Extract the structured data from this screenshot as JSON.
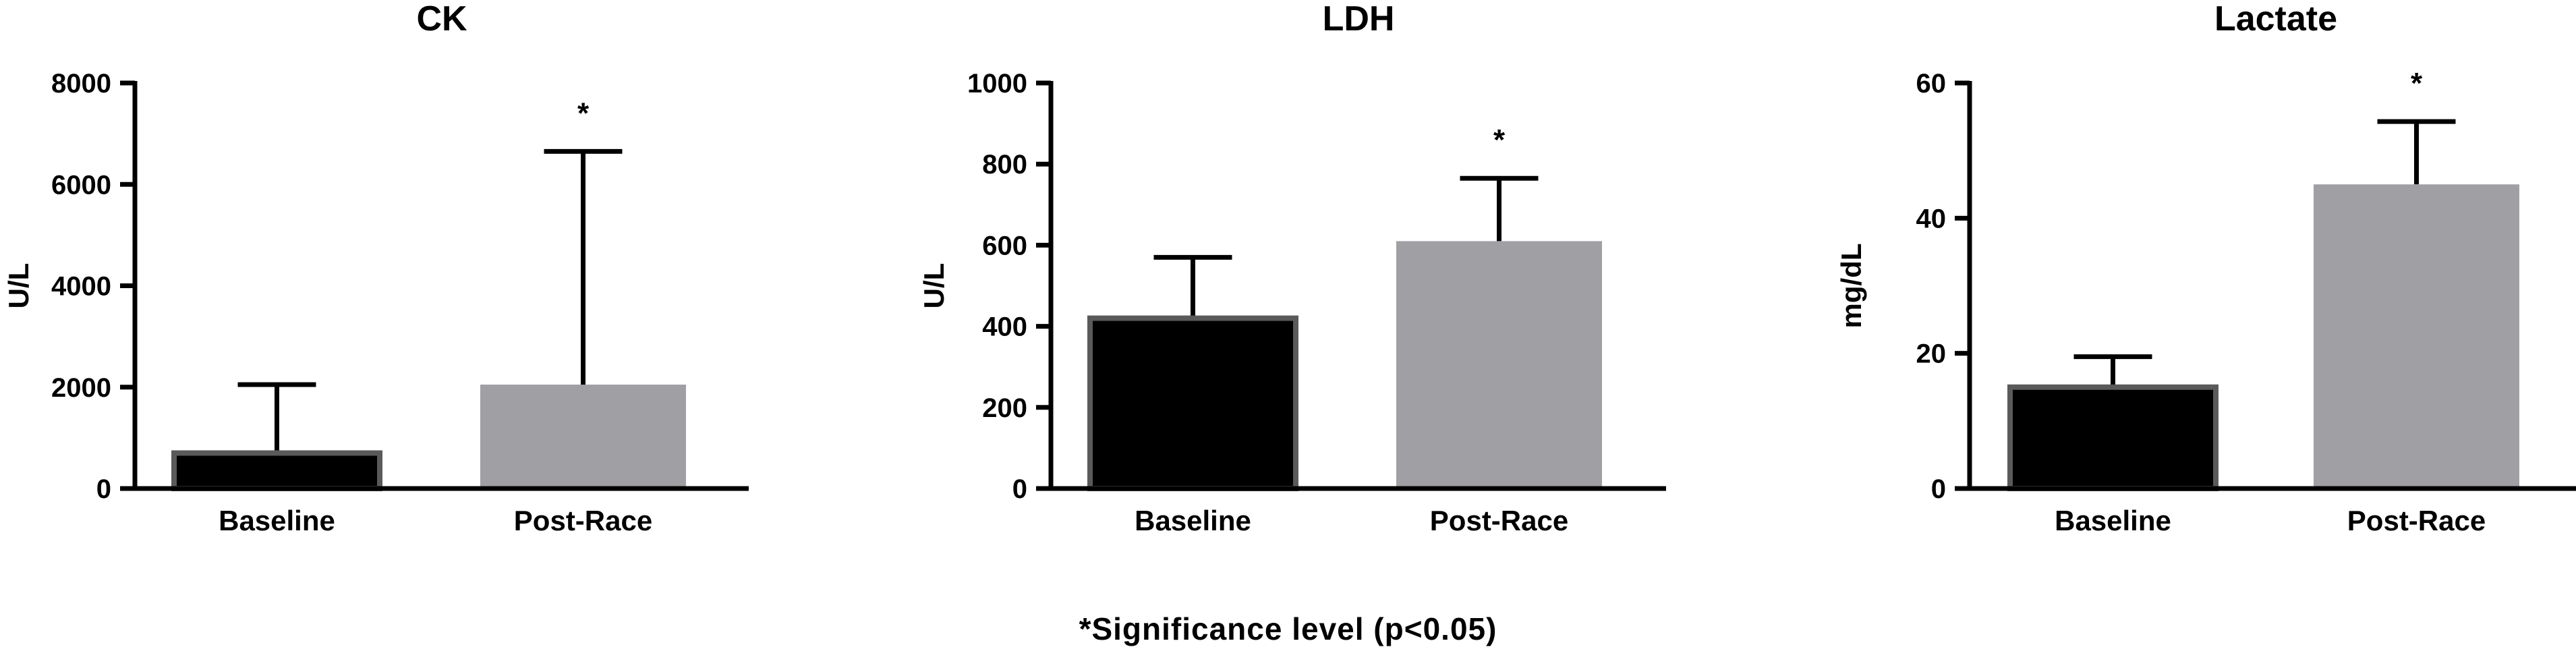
{
  "chart_data": [
    {
      "type": "bar",
      "title": "CK",
      "ylabel": "U/L",
      "ylim": [
        0,
        8000
      ],
      "yticks": [
        0,
        2000,
        4000,
        6000,
        8000
      ],
      "categories": [
        "Baseline",
        "Post-Race"
      ],
      "values": [
        700,
        2050
      ],
      "errors": [
        1350,
        4600
      ],
      "significance": [
        "",
        "*"
      ],
      "colors": [
        "#000000",
        "#a0a0a4"
      ]
    },
    {
      "type": "bar",
      "title": "LDH",
      "ylabel": "U/L",
      "ylim": [
        0,
        1000
      ],
      "yticks": [
        0,
        200,
        400,
        600,
        800,
        1000
      ],
      "categories": [
        "Baseline",
        "Post-Race"
      ],
      "values": [
        420,
        610
      ],
      "errors": [
        150,
        155
      ],
      "significance": [
        "",
        "*"
      ],
      "colors": [
        "#000000",
        "#a0a0a4"
      ]
    },
    {
      "type": "bar",
      "title": "Lactate",
      "ylabel": "mg/dL",
      "ylim": [
        0,
        60
      ],
      "yticks": [
        0,
        20,
        40,
        60
      ],
      "categories": [
        "Baseline",
        "Post-Race"
      ],
      "values": [
        15,
        45
      ],
      "errors": [
        4.5,
        9.3
      ],
      "significance": [
        "",
        "*"
      ],
      "colors": [
        "#000000",
        "#a0a0a4"
      ]
    }
  ],
  "footnote": "*Significance level (p<0.05)"
}
